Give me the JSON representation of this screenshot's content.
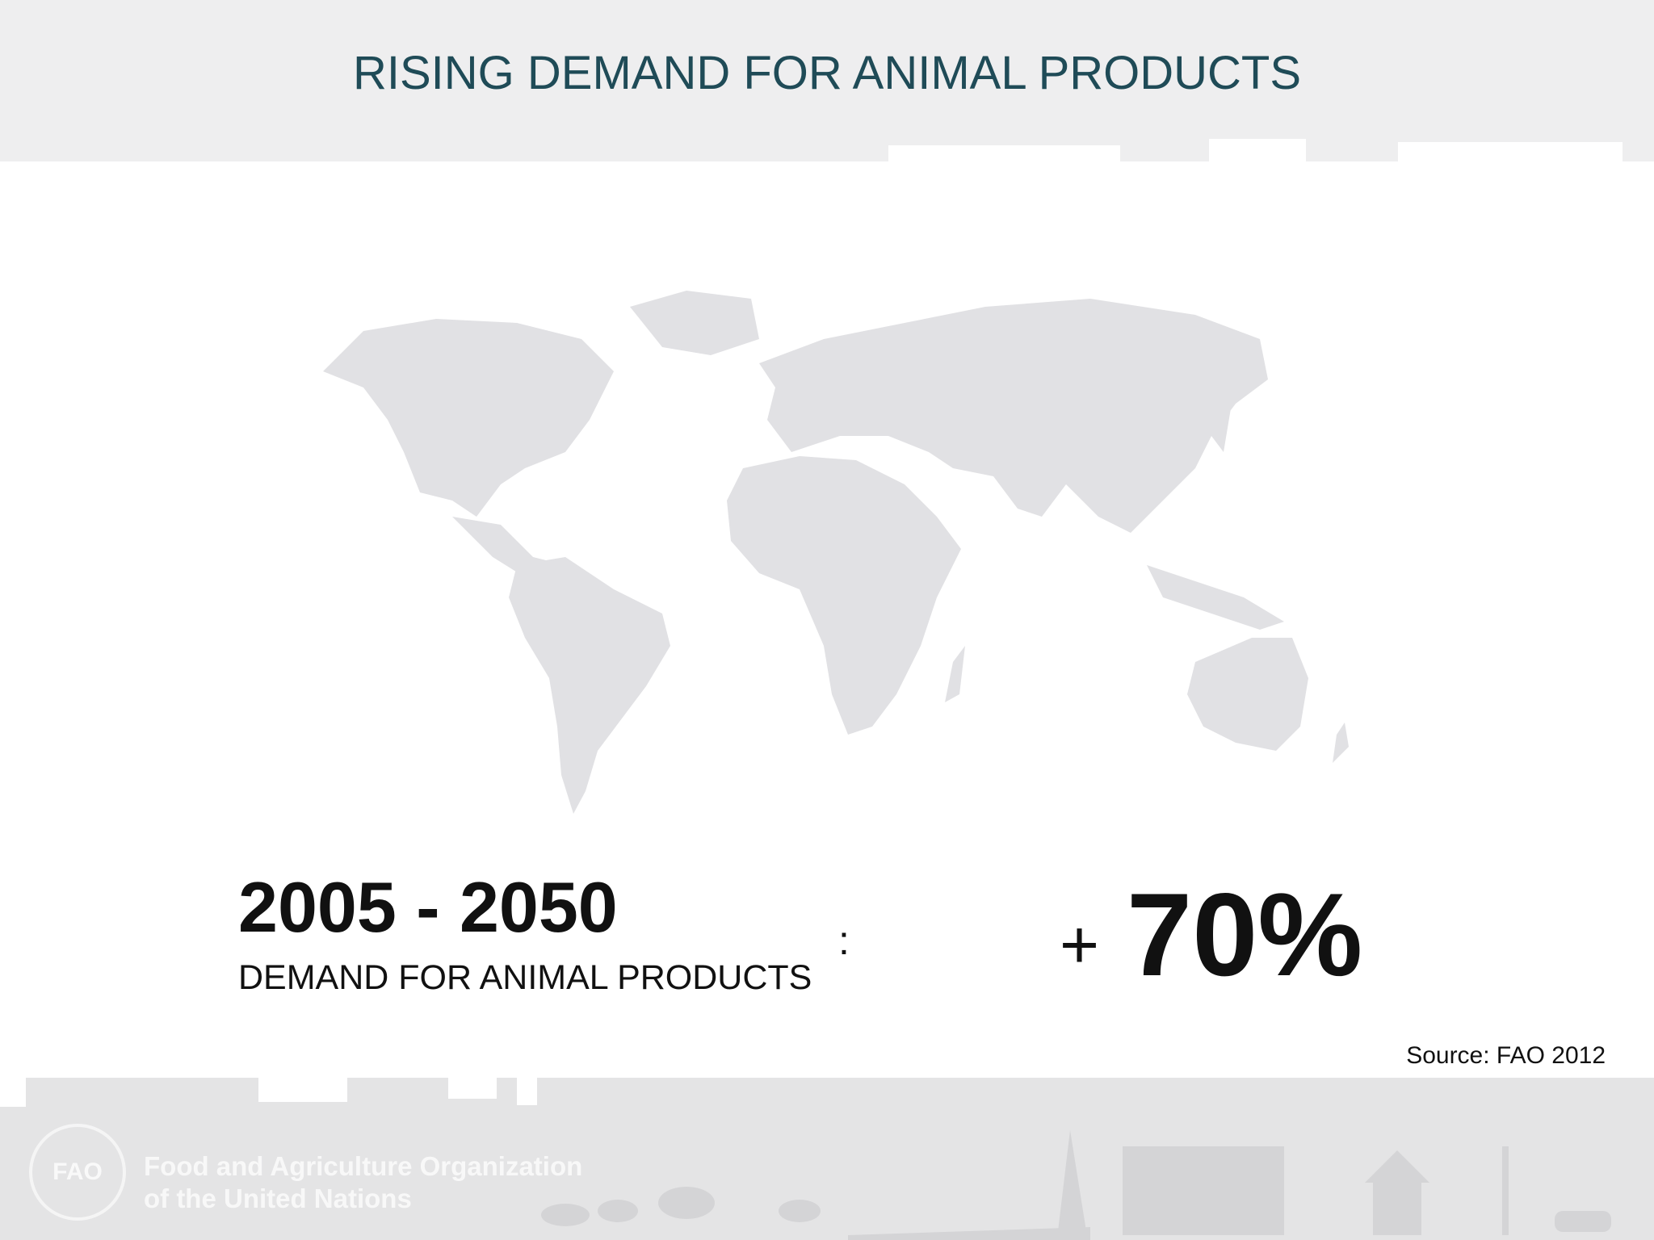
{
  "header": {
    "title": "RISING DEMAND FOR ANIMAL PRODUCTS"
  },
  "statement": {
    "period": "2005 - 2050",
    "subject": "DEMAND FOR ANIMAL PRODUCTS",
    "separator": ":",
    "sign": "+",
    "change": "70%"
  },
  "source": "Source: FAO 2012",
  "footer": {
    "logo": "FAO",
    "organization_line1": "Food and Agriculture Organization",
    "organization_line2": "of the United Nations"
  }
}
